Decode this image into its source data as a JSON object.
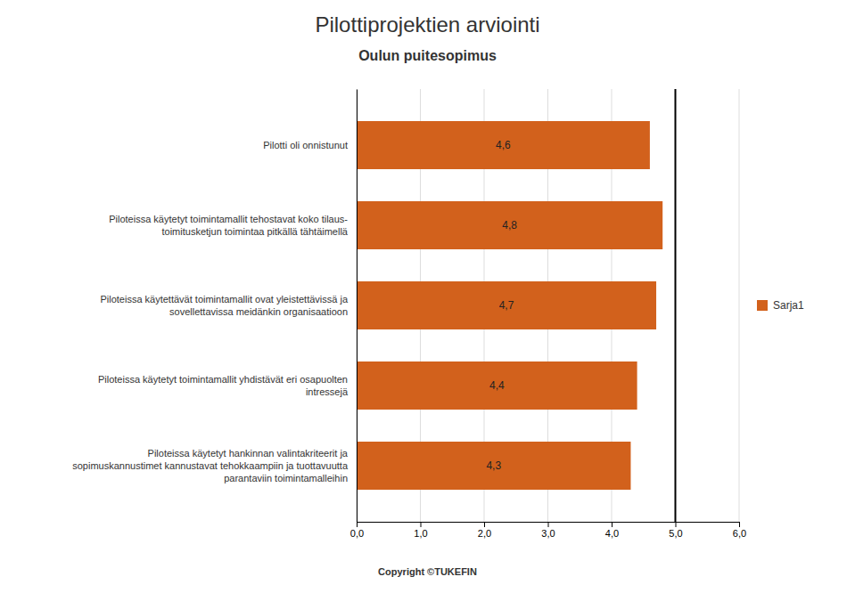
{
  "chart_data": {
    "type": "bar",
    "orientation": "horizontal",
    "title": "Pilottiprojektien arviointi",
    "subtitle": "Oulun puitesopimus",
    "categories": [
      "Piloteissa käytetyt hankinnan valintakriteerit ja\nsopimuskannustimet kannustavat tehokkaampiin ja tuottavuutta\nparantaviin toimintamalleihin",
      "Piloteissa käytetyt toimintamallit yhdistävät eri osapuolten\nintressejä",
      "Piloteissa käytettävät toimintamallit ovat yleistettävissä ja\nsovellettavissa meidänkin organisaatioon",
      "Piloteissa käytetyt toimintamallit tehostavat koko tilaus-\ntoimitusketjun toimintaa pitkällä tähtäimellä",
      "Pilotti oli onnistunut"
    ],
    "series": [
      {
        "name": "Sarja1",
        "color": "#D2611C",
        "values": [
          4.3,
          4.4,
          4.7,
          4.8,
          4.6
        ],
        "value_labels": [
          "4,3",
          "4,4",
          "4,7",
          "4,8",
          "4,6"
        ]
      }
    ],
    "reference_line": 5.0,
    "xlim": [
      0,
      6.0
    ],
    "xticks": [
      {
        "value": 0.0,
        "label": "0,0"
      },
      {
        "value": 1.0,
        "label": "1,0"
      },
      {
        "value": 2.0,
        "label": "2,0"
      },
      {
        "value": 3.0,
        "label": "3,0"
      },
      {
        "value": 4.0,
        "label": "4,0"
      },
      {
        "value": 5.0,
        "label": "5,0"
      },
      {
        "value": 6.0,
        "label": "6,0"
      }
    ],
    "grid": true,
    "data_labels": true,
    "legend": "right",
    "annotations": [
      "Copyright ©TUKEFIN"
    ]
  }
}
